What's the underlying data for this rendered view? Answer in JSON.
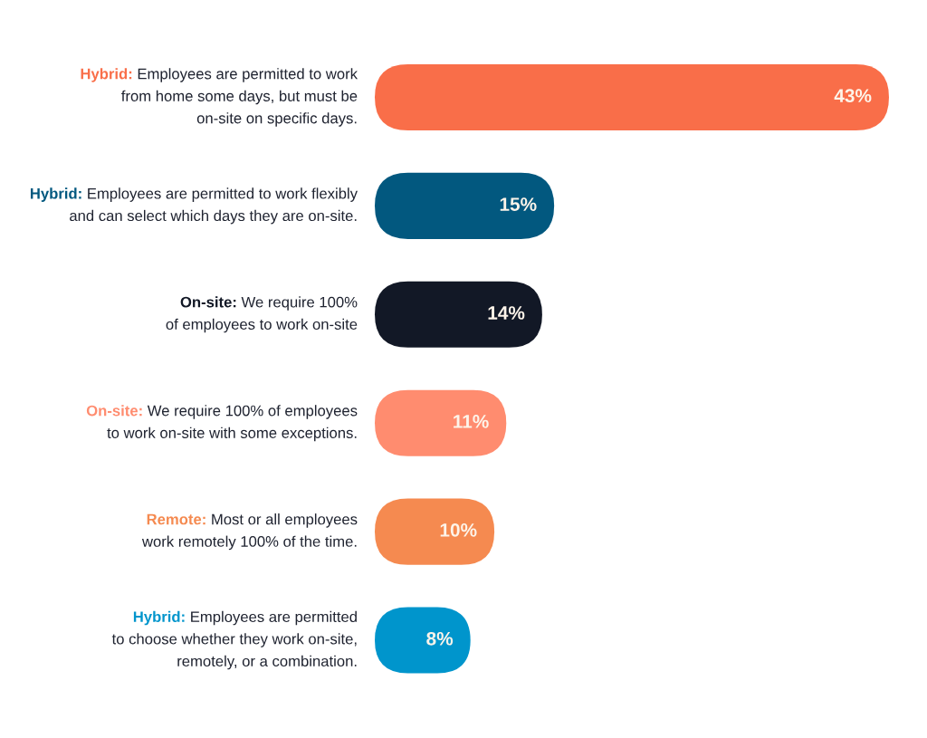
{
  "chart_data": {
    "type": "bar",
    "orientation": "horizontal",
    "categories": [
      "Hybrid: Employees are permitted to work\nfrom home some days, but must be\non-site on specific days.",
      "Hybrid: Employees are permitted to work flexibly\nand can select which days they are on-site.",
      "On-site: We require 100%\nof employees to work on-site",
      "On-site: We require 100% of employees\nto work on-site with some exceptions.",
      "Remote: Most or all employees\nwork remotely 100% of the time.",
      "Hybrid: Employees are permitted\nto choose whether they work on-site,\nremotely, or a combination."
    ],
    "values": [
      43,
      15,
      14,
      11,
      10,
      8
    ],
    "colors": [
      "#f96e49",
      "#02587f",
      "#121826",
      "#ff8c6f",
      "#f58a50",
      "#0095cc"
    ],
    "value_labels": [
      "43%",
      "15%",
      "14%",
      "11%",
      "10%",
      "8%"
    ],
    "tick_labels": "y"
  }
}
